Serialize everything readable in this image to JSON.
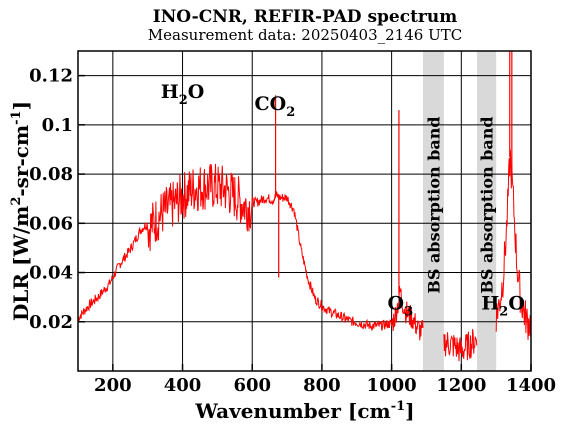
{
  "chart_data": {
    "type": "line",
    "title": "INO-CNR, REFIR-PAD spectrum",
    "subtitle": "Measurement data: 20250403_2146 UTC",
    "xlabel": {
      "base": "Wavenumber [cm",
      "sup": "-1",
      "tail": "]"
    },
    "ylabel": {
      "p1": "DLR [W/m",
      "sup1": "2",
      "p2": "-sr-cm",
      "sup2": "-1",
      "p3": "]"
    },
    "xlim": [
      100,
      1400
    ],
    "ylim": [
      0,
      0.13
    ],
    "x_ticks": [
      200,
      400,
      600,
      800,
      1000,
      1200,
      1400
    ],
    "y_ticks": [
      0.02,
      0.04,
      0.06,
      0.08,
      0.1,
      0.12
    ],
    "y_tick_labels": [
      "0.02",
      "0.04",
      "0.06",
      "0.08",
      "0.1",
      "0.12"
    ],
    "grid": true,
    "line_color": "#ff0000",
    "band_color": "#d9d9d9",
    "series": [
      {
        "x": [
          100,
          130,
          160,
          190,
          220,
          250,
          280,
          310,
          340,
          370,
          400,
          430,
          460,
          490,
          520,
          550,
          580,
          610,
          640,
          660,
          670,
          680,
          700,
          720,
          740,
          760,
          780,
          800,
          820,
          850,
          880,
          910,
          940,
          970,
          1000,
          1010,
          1020,
          1025,
          1030,
          1040,
          1050,
          1060,
          1070,
          1080,
          1180,
          1200,
          1220,
          1290,
          1300,
          1310,
          1320,
          1330,
          1340,
          1350,
          1360,
          1370,
          1380,
          1390,
          1400
        ],
        "y": [
          0.022,
          0.027,
          0.031,
          0.036,
          0.044,
          0.05,
          0.058,
          0.062,
          0.067,
          0.07,
          0.074,
          0.077,
          0.078,
          0.078,
          0.077,
          0.074,
          0.07,
          0.069,
          0.071,
          0.07,
          0.072,
          0.071,
          0.071,
          0.066,
          0.05,
          0.038,
          0.03,
          0.027,
          0.025,
          0.023,
          0.021,
          0.02,
          0.019,
          0.019,
          0.02,
          0.024,
          0.03,
          0.034,
          0.03,
          0.026,
          0.024,
          0.023,
          0.02,
          0.018,
          0.012,
          0.01,
          0.012,
          0.02,
          0.025,
          0.03,
          0.04,
          0.06,
          0.09,
          0.07,
          0.045,
          0.032,
          0.026,
          0.022,
          0.022
        ]
      }
    ],
    "spikes": [
      {
        "x": 667,
        "y": 0.112
      },
      {
        "x": 676,
        "y": 0.038
      },
      {
        "x": 1021,
        "y": 0.106
      },
      {
        "x": 1339,
        "y": 0.13
      },
      {
        "x": 1345,
        "y": 0.13
      }
    ],
    "bands": [
      {
        "x0": 1090,
        "x1": 1150,
        "label": "BS absorption band"
      },
      {
        "x0": 1245,
        "x1": 1300,
        "label": "BS absorption band"
      }
    ],
    "annotations": [
      {
        "id": "h2o-1",
        "x": 400,
        "y": 0.111,
        "base": "H",
        "sub": "2",
        "tail": "O"
      },
      {
        "id": "co2",
        "x": 665,
        "y": 0.106,
        "base": "CO",
        "sub": "2",
        "tail": ""
      },
      {
        "id": "o3",
        "x": 1025,
        "y": 0.025,
        "base": "O",
        "sub": "3",
        "tail": ""
      },
      {
        "id": "h2o-2",
        "x": 1320,
        "y": 0.025,
        "base": "H",
        "sub": "2",
        "tail": "O"
      }
    ]
  }
}
